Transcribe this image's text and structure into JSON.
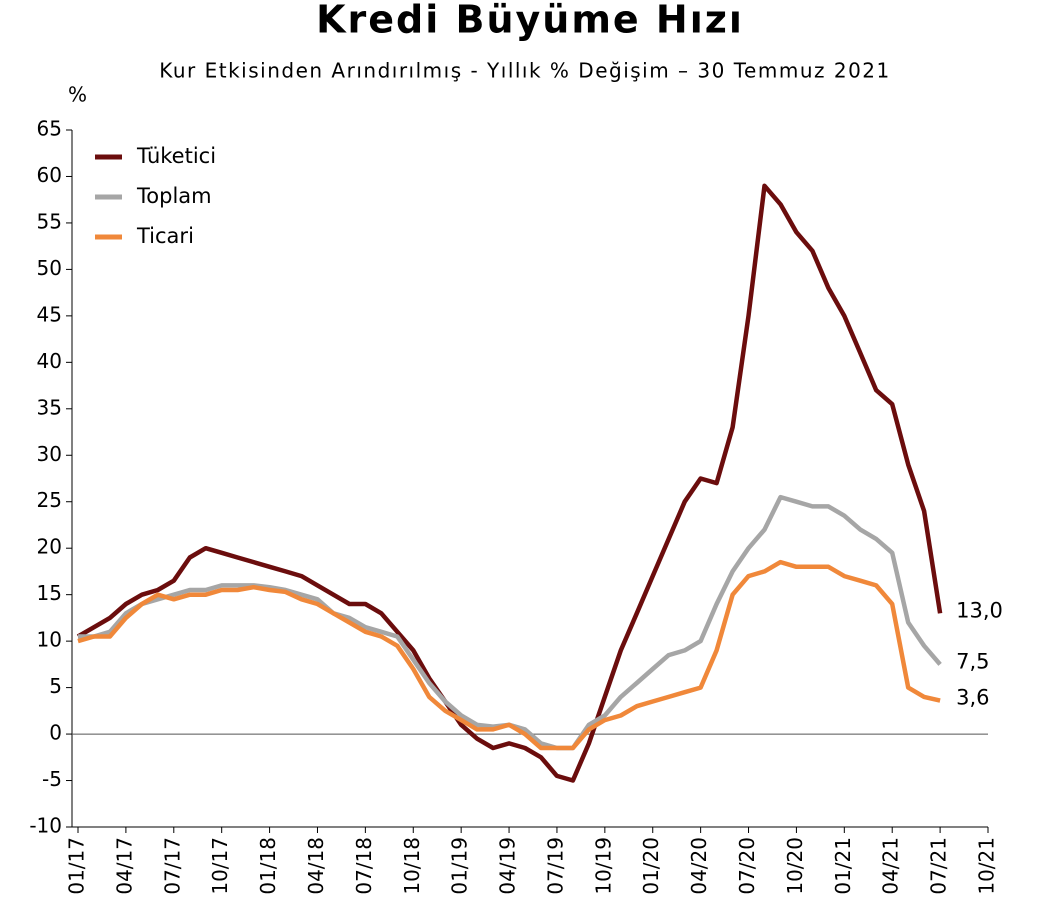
{
  "chart_data": {
    "type": "line",
    "title": "Kredi Büyüme Hızı",
    "subtitle": "Kur Etkisinden Arındırılmış - Yıllık % Değişim – 30 Temmuz 2021",
    "y_label": "%",
    "x": [
      "01/17",
      "02/17",
      "03/17",
      "04/17",
      "05/17",
      "06/17",
      "07/17",
      "08/17",
      "09/17",
      "10/17",
      "11/17",
      "12/17",
      "01/18",
      "02/18",
      "03/18",
      "04/18",
      "05/18",
      "06/18",
      "07/18",
      "08/18",
      "09/18",
      "10/18",
      "11/18",
      "12/18",
      "01/19",
      "02/19",
      "03/19",
      "04/19",
      "05/19",
      "06/19",
      "07/19",
      "08/19",
      "09/19",
      "10/19",
      "11/19",
      "12/19",
      "01/20",
      "02/20",
      "03/20",
      "04/20",
      "05/20",
      "06/20",
      "07/20",
      "08/20",
      "09/20",
      "10/20",
      "11/20",
      "12/20",
      "01/21",
      "02/21",
      "03/21",
      "04/21",
      "05/21",
      "06/21",
      "07/21"
    ],
    "series": [
      {
        "name": "Tüketici",
        "color": "#6b0d0d",
        "values": [
          10.5,
          11.5,
          12.5,
          14,
          15,
          15.5,
          16.5,
          19,
          20,
          19.5,
          19,
          18.5,
          18,
          17.5,
          17,
          16,
          15,
          14,
          14,
          13,
          11,
          9,
          6,
          3.5,
          1,
          -0.5,
          -1.5,
          -1,
          -1.5,
          -2.5,
          -4.5,
          -5,
          -1,
          4,
          9,
          13,
          17,
          21,
          25,
          27.5,
          27,
          33,
          45,
          59,
          57,
          54,
          52,
          48,
          45,
          41,
          37,
          35.5,
          29,
          24,
          13
        ],
        "value_labels": [
          null,
          null,
          null,
          null,
          null,
          null,
          null,
          null,
          null,
          null,
          null,
          null,
          null,
          null,
          null,
          null,
          null,
          null,
          null,
          null,
          null,
          null,
          null,
          null,
          null,
          null,
          null,
          null,
          null,
          null,
          null,
          null,
          null,
          null,
          null,
          null,
          null,
          null,
          null,
          null,
          null,
          null,
          null,
          null,
          null,
          null,
          null,
          null,
          null,
          null,
          null,
          null,
          null,
          null,
          "13,0"
        ]
      },
      {
        "name": "Toplam",
        "color": "#a6a6a6",
        "values": [
          10.5,
          10.5,
          11,
          13,
          14,
          14.5,
          15,
          15.5,
          15.5,
          16,
          16,
          16,
          15.8,
          15.5,
          15,
          14.5,
          13,
          12.5,
          11.5,
          11,
          10.5,
          8,
          5.5,
          3.5,
          2,
          1,
          0.8,
          1,
          0.5,
          -1,
          -1.5,
          -1.5,
          1,
          2,
          4,
          5.5,
          7,
          8.5,
          9,
          10,
          14,
          17.5,
          20,
          22,
          25.5,
          25,
          24.5,
          24.5,
          23.5,
          22,
          21,
          19.5,
          12,
          9.5,
          7.5
        ],
        "value_labels": [
          null,
          null,
          null,
          null,
          null,
          null,
          null,
          null,
          null,
          null,
          null,
          null,
          null,
          null,
          null,
          null,
          null,
          null,
          null,
          null,
          null,
          null,
          null,
          null,
          null,
          null,
          null,
          null,
          null,
          null,
          null,
          null,
          null,
          null,
          null,
          null,
          null,
          null,
          null,
          null,
          null,
          null,
          null,
          null,
          null,
          null,
          null,
          null,
          null,
          null,
          null,
          null,
          null,
          null,
          "7,5"
        ]
      },
      {
        "name": "Ticari",
        "color": "#f0883a",
        "values": [
          10,
          10.5,
          10.5,
          12.5,
          14,
          15,
          14.5,
          15,
          15,
          15.5,
          15.5,
          15.8,
          15.5,
          15.3,
          14.5,
          14,
          13,
          12,
          11,
          10.5,
          9.5,
          7,
          4,
          2.5,
          1.5,
          0.5,
          0.5,
          1,
          0,
          -1.5,
          -1.5,
          -1.5,
          0.5,
          1.5,
          2,
          3,
          3.5,
          4,
          4.5,
          5,
          9,
          15,
          17,
          17.5,
          18.5,
          18,
          18,
          18,
          17,
          16.5,
          16,
          14,
          5,
          4,
          3.6
        ],
        "value_labels": [
          null,
          null,
          null,
          null,
          null,
          null,
          null,
          null,
          null,
          null,
          null,
          null,
          null,
          null,
          null,
          null,
          null,
          null,
          null,
          null,
          null,
          null,
          null,
          null,
          null,
          null,
          null,
          null,
          null,
          null,
          null,
          null,
          null,
          null,
          null,
          null,
          null,
          null,
          null,
          null,
          null,
          null,
          null,
          null,
          null,
          null,
          null,
          null,
          null,
          null,
          null,
          null,
          null,
          null,
          "3,6"
        ]
      }
    ],
    "xlim": [
      "01/17",
      "10/21"
    ],
    "xticks": [
      "01/17",
      "04/17",
      "07/17",
      "10/17",
      "01/18",
      "04/18",
      "07/18",
      "10/18",
      "01/19",
      "04/19",
      "07/19",
      "10/19",
      "01/20",
      "04/20",
      "07/20",
      "10/20",
      "01/21",
      "04/21",
      "07/21",
      "10/21"
    ],
    "ylim": [
      -10,
      65
    ],
    "yticks": [
      -10,
      -5,
      0,
      5,
      10,
      15,
      20,
      25,
      30,
      35,
      40,
      45,
      50,
      55,
      60,
      65
    ],
    "grid": false,
    "legend": "top-left"
  }
}
